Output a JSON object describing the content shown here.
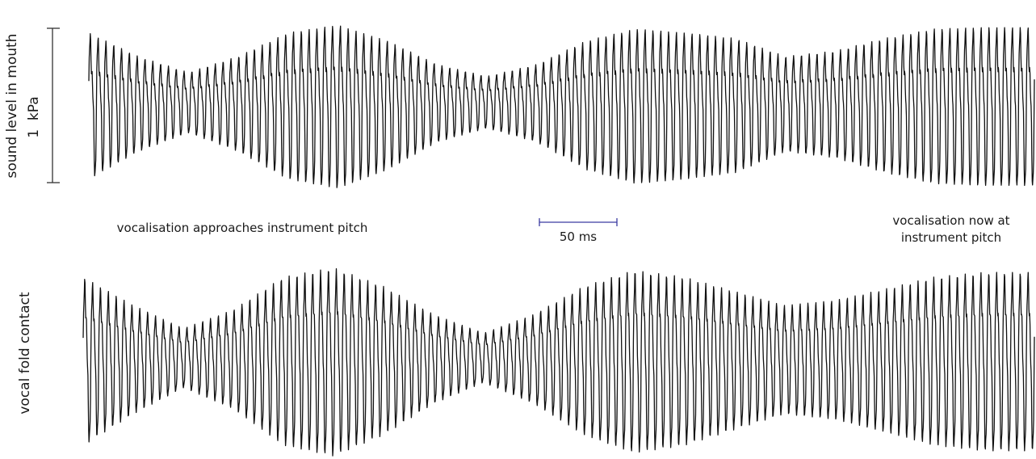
{
  "chart_data": [
    {
      "type": "line",
      "ylabel": "sound level in mouth",
      "scale_bar_y": {
        "label": "1  kPa",
        "value": 1,
        "unit": "kPa"
      },
      "annotation": "vocalisation approaches instrument pitch",
      "waveform": {
        "cycles": 121,
        "envelope_samples": [
          0.85,
          0.55,
          0.35,
          0.55,
          0.85,
          0.95,
          0.75,
          0.45,
          0.3,
          0.45,
          0.75,
          0.9,
          0.85,
          0.78,
          0.55,
          0.62,
          0.78,
          0.9,
          0.92,
          0.92
        ]
      }
    },
    {
      "type": "line",
      "scale_bar_x": {
        "label": "50 ms",
        "value": 50,
        "unit": "ms"
      },
      "annotation": "vocalisation now at\ninstrument pitch"
    },
    {
      "type": "line",
      "ylabel": "vocal fold contact",
      "waveform": {
        "cycles": 121,
        "envelope_samples": [
          0.85,
          0.55,
          0.3,
          0.5,
          0.85,
          0.95,
          0.75,
          0.45,
          0.25,
          0.45,
          0.75,
          0.92,
          0.85,
          0.7,
          0.55,
          0.6,
          0.72,
          0.85,
          0.9,
          0.9
        ]
      }
    }
  ],
  "colors": {
    "trace": "#111111",
    "scale_bar_x": "#3a3aa0",
    "text": "#1a1a1a"
  }
}
